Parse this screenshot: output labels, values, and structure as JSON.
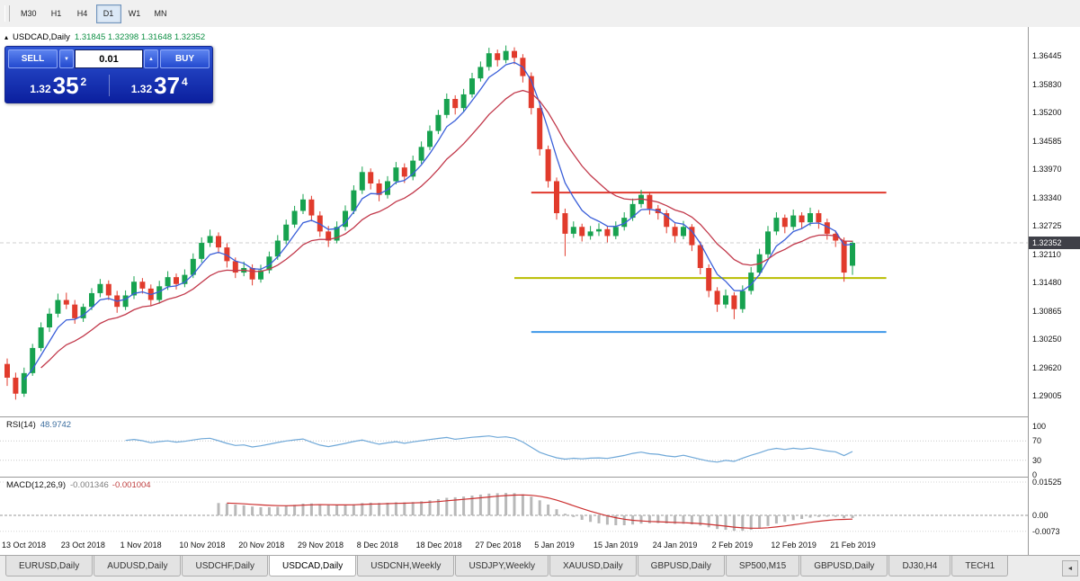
{
  "toolbar": {
    "timeframes": [
      {
        "label": "M30",
        "active": false
      },
      {
        "label": "H1",
        "active": false
      },
      {
        "label": "H4",
        "active": false
      },
      {
        "label": "D1",
        "active": true
      },
      {
        "label": "W1",
        "active": false
      },
      {
        "label": "MN",
        "active": false
      }
    ]
  },
  "chart_header": {
    "collapse_icon": "▴",
    "symbol": "USDCAD,Daily",
    "ohlc": "1.31845 1.32398 1.31648 1.32352"
  },
  "trade_panel": {
    "sell_label": "SELL",
    "buy_label": "BUY",
    "volume": "0.01",
    "volume_down_icon": "▼",
    "volume_up_icon": "▲",
    "sell_price": {
      "prefix": "1.32",
      "big": "35",
      "sup": "2"
    },
    "buy_price": {
      "prefix": "1.32",
      "big": "37",
      "sup": "4"
    }
  },
  "price_axis": {
    "labels": [
      "1.36445",
      "1.35830",
      "1.35200",
      "1.34585",
      "1.33970",
      "1.33340",
      "1.32725",
      "1.32110",
      "1.31480",
      "1.30865",
      "1.30250",
      "1.29620",
      "1.29005"
    ],
    "current": "1.32352"
  },
  "rsi_panel": {
    "title": "RSI(14)",
    "value": "48.9742",
    "levels": [
      100,
      70,
      30,
      0
    ]
  },
  "macd_panel": {
    "title": "MACD(12,26,9)",
    "value_macd": "-0.001346",
    "value_signal": "-0.001004",
    "levels": [
      {
        "label": "0.01525",
        "value": 0.01525
      },
      {
        "label": "0.00",
        "value": 0
      },
      {
        "label": "-0.0073",
        "value": -0.0073
      }
    ]
  },
  "date_axis": {
    "labels": [
      {
        "label": "13 Oct 2018",
        "i": 0
      },
      {
        "label": "23 Oct 2018",
        "i": 7
      },
      {
        "label": "1 Nov 2018",
        "i": 14
      },
      {
        "label": "10 Nov 2018",
        "i": 21
      },
      {
        "label": "20 Nov 2018",
        "i": 28
      },
      {
        "label": "29 Nov 2018",
        "i": 35
      },
      {
        "label": "8 Dec 2018",
        "i": 42
      },
      {
        "label": "18 Dec 2018",
        "i": 49
      },
      {
        "label": "27 Dec 2018",
        "i": 56
      },
      {
        "label": "5 Jan 2019",
        "i": 63
      },
      {
        "label": "15 Jan 2019",
        "i": 70
      },
      {
        "label": "24 Jan 2019",
        "i": 77
      },
      {
        "label": "2 Feb 2019",
        "i": 84
      },
      {
        "label": "12 Feb 2019",
        "i": 91
      },
      {
        "label": "21 Feb 2019",
        "i": 98
      }
    ]
  },
  "tabs": {
    "items": [
      {
        "label": "EURUSD,Daily",
        "active": false
      },
      {
        "label": "AUDUSD,Daily",
        "active": false
      },
      {
        "label": "USDCHF,Daily",
        "active": false
      },
      {
        "label": "USDCAD,Daily",
        "active": true
      },
      {
        "label": "USDCNH,Weekly",
        "active": false
      },
      {
        "label": "USDJPY,Weekly",
        "active": false
      },
      {
        "label": "XAUUSD,Daily",
        "active": false
      },
      {
        "label": "GBPUSD,Daily",
        "active": false
      },
      {
        "label": "SP500,M15",
        "active": false
      },
      {
        "label": "GBPUSD,Daily",
        "active": false
      },
      {
        "label": "DJ30,H4",
        "active": false
      },
      {
        "label": "TECH1",
        "active": false
      }
    ],
    "scroll_left_icon": "◄"
  },
  "chart_data": {
    "type": "candlestick",
    "symbol": "USDCAD",
    "timeframe": "Daily",
    "colors": {
      "up": "#17a24f",
      "down": "#e13b2c"
    },
    "ma": {
      "fast_period": 5,
      "fast_color": "#3a5fd9",
      "slow_period": 13,
      "slow_color": "#c2394b"
    },
    "hlines": [
      {
        "price": 1.3345,
        "color": "#e0392e",
        "from_i": 62,
        "to_i": 104
      },
      {
        "price": 1.3158,
        "color": "#b9bd00",
        "from_i": 60,
        "to_i": 104
      },
      {
        "price": 1.304,
        "color": "#3d97e8",
        "from_i": 62,
        "to_i": 104
      }
    ],
    "rsi": {
      "period": 14,
      "color": "#6fa8d8"
    },
    "macd": {
      "fast": 12,
      "slow": 26,
      "signal": 9,
      "hist_color": "#b8b8b8",
      "signal_color": "#cc2f2f"
    },
    "candles": [
      [
        1.297,
        1.2982,
        1.2922,
        1.294
      ],
      [
        1.294,
        1.2951,
        1.2892,
        1.2905
      ],
      [
        1.2905,
        1.2962,
        1.2898,
        1.295
      ],
      [
        1.295,
        1.3014,
        1.2944,
        1.3005
      ],
      [
        1.3005,
        1.3061,
        1.2998,
        1.305
      ],
      [
        1.305,
        1.3092,
        1.304,
        1.308
      ],
      [
        1.308,
        1.3124,
        1.3072,
        1.311
      ],
      [
        1.311,
        1.3126,
        1.309,
        1.31
      ],
      [
        1.31,
        1.311,
        1.3058,
        1.307
      ],
      [
        1.307,
        1.3102,
        1.3062,
        1.3095
      ],
      [
        1.3095,
        1.3136,
        1.3088,
        1.3125
      ],
      [
        1.3125,
        1.3156,
        1.3116,
        1.3145
      ],
      [
        1.3145,
        1.3153,
        1.311,
        1.312
      ],
      [
        1.312,
        1.313,
        1.3082,
        1.3095
      ],
      [
        1.3095,
        1.3131,
        1.3088,
        1.312
      ],
      [
        1.312,
        1.3162,
        1.3112,
        1.315
      ],
      [
        1.315,
        1.3158,
        1.3124,
        1.3135
      ],
      [
        1.3135,
        1.3144,
        1.3098,
        1.311
      ],
      [
        1.311,
        1.3152,
        1.3102,
        1.314
      ],
      [
        1.314,
        1.3173,
        1.3132,
        1.316
      ],
      [
        1.316,
        1.3168,
        1.3133,
        1.3145
      ],
      [
        1.3145,
        1.3177,
        1.3138,
        1.3165
      ],
      [
        1.3165,
        1.3212,
        1.3158,
        1.32
      ],
      [
        1.32,
        1.3247,
        1.3192,
        1.3235
      ],
      [
        1.3235,
        1.3264,
        1.3226,
        1.325
      ],
      [
        1.325,
        1.3258,
        1.3212,
        1.3225
      ],
      [
        1.3225,
        1.3234,
        1.3181,
        1.3195
      ],
      [
        1.3195,
        1.3203,
        1.3158,
        1.317
      ],
      [
        1.317,
        1.3194,
        1.3162,
        1.318
      ],
      [
        1.318,
        1.3188,
        1.3142,
        1.3155
      ],
      [
        1.3155,
        1.3187,
        1.3148,
        1.3175
      ],
      [
        1.3175,
        1.3216,
        1.3168,
        1.3205
      ],
      [
        1.3205,
        1.3252,
        1.3198,
        1.324
      ],
      [
        1.324,
        1.3286,
        1.3232,
        1.3275
      ],
      [
        1.3275,
        1.3316,
        1.3268,
        1.3305
      ],
      [
        1.3305,
        1.3342,
        1.3298,
        1.333
      ],
      [
        1.333,
        1.3338,
        1.3282,
        1.3295
      ],
      [
        1.3295,
        1.3304,
        1.3248,
        1.326
      ],
      [
        1.326,
        1.3272,
        1.3226,
        1.324
      ],
      [
        1.324,
        1.3282,
        1.3234,
        1.327
      ],
      [
        1.327,
        1.3317,
        1.3262,
        1.3305
      ],
      [
        1.3305,
        1.3361,
        1.3298,
        1.335
      ],
      [
        1.335,
        1.3402,
        1.3342,
        1.339
      ],
      [
        1.339,
        1.3398,
        1.3352,
        1.3365
      ],
      [
        1.3365,
        1.3374,
        1.3326,
        1.334
      ],
      [
        1.334,
        1.3381,
        1.3332,
        1.337
      ],
      [
        1.337,
        1.3412,
        1.3363,
        1.34
      ],
      [
        1.34,
        1.3409,
        1.3366,
        1.338
      ],
      [
        1.338,
        1.3426,
        1.3372,
        1.3415
      ],
      [
        1.3415,
        1.3457,
        1.3408,
        1.3445
      ],
      [
        1.3445,
        1.3492,
        1.3438,
        1.348
      ],
      [
        1.348,
        1.3526,
        1.3473,
        1.3515
      ],
      [
        1.3515,
        1.3562,
        1.3508,
        1.355
      ],
      [
        1.355,
        1.3558,
        1.3516,
        1.353
      ],
      [
        1.353,
        1.3572,
        1.3522,
        1.356
      ],
      [
        1.356,
        1.3607,
        1.3553,
        1.3595
      ],
      [
        1.3595,
        1.3632,
        1.3588,
        1.362
      ],
      [
        1.362,
        1.3662,
        1.3612,
        1.365
      ],
      [
        1.365,
        1.3658,
        1.3621,
        1.3635
      ],
      [
        1.3635,
        1.3667,
        1.3628,
        1.3655
      ],
      [
        1.3655,
        1.3663,
        1.3626,
        1.364
      ],
      [
        1.364,
        1.3648,
        1.3586,
        1.36
      ],
      [
        1.36,
        1.3608,
        1.3516,
        1.353
      ],
      [
        1.353,
        1.3538,
        1.3426,
        1.344
      ],
      [
        1.344,
        1.3448,
        1.3356,
        1.337
      ],
      [
        1.337,
        1.3378,
        1.3286,
        1.33
      ],
      [
        1.33,
        1.331,
        1.3206,
        1.3255
      ],
      [
        1.3255,
        1.3282,
        1.3246,
        1.327
      ],
      [
        1.327,
        1.3277,
        1.3238,
        1.325
      ],
      [
        1.325,
        1.3272,
        1.3242,
        1.326
      ],
      [
        1.326,
        1.3278,
        1.325,
        1.3265
      ],
      [
        1.3265,
        1.3272,
        1.3236,
        1.325
      ],
      [
        1.325,
        1.3282,
        1.3243,
        1.327
      ],
      [
        1.327,
        1.3302,
        1.3262,
        1.329
      ],
      [
        1.329,
        1.3332,
        1.3283,
        1.332
      ],
      [
        1.332,
        1.3351,
        1.3312,
        1.334
      ],
      [
        1.334,
        1.3347,
        1.3297,
        1.331
      ],
      [
        1.331,
        1.3318,
        1.3286,
        1.33
      ],
      [
        1.33,
        1.3307,
        1.3256,
        1.327
      ],
      [
        1.327,
        1.3278,
        1.3236,
        1.325
      ],
      [
        1.325,
        1.3283,
        1.3243,
        1.327
      ],
      [
        1.327,
        1.3276,
        1.3217,
        1.323
      ],
      [
        1.323,
        1.3238,
        1.3166,
        1.318
      ],
      [
        1.318,
        1.3188,
        1.3116,
        1.313
      ],
      [
        1.313,
        1.3138,
        1.3084,
        1.31
      ],
      [
        1.31,
        1.3133,
        1.3092,
        1.312
      ],
      [
        1.312,
        1.3127,
        1.3068,
        1.309
      ],
      [
        1.309,
        1.3142,
        1.3082,
        1.313
      ],
      [
        1.313,
        1.3182,
        1.3122,
        1.317
      ],
      [
        1.317,
        1.3222,
        1.3163,
        1.321
      ],
      [
        1.321,
        1.3272,
        1.3202,
        1.326
      ],
      [
        1.326,
        1.3302,
        1.3252,
        1.329
      ],
      [
        1.329,
        1.3297,
        1.3256,
        1.327
      ],
      [
        1.327,
        1.3308,
        1.3263,
        1.3295
      ],
      [
        1.3295,
        1.3302,
        1.3266,
        1.328
      ],
      [
        1.328,
        1.3312,
        1.3272,
        1.33
      ],
      [
        1.33,
        1.3307,
        1.3266,
        1.328
      ],
      [
        1.328,
        1.3288,
        1.3242,
        1.3255
      ],
      [
        1.3255,
        1.3262,
        1.3226,
        1.324
      ],
      [
        1.324,
        1.3247,
        1.315,
        1.317
      ],
      [
        1.3185,
        1.324,
        1.3165,
        1.3235
      ]
    ]
  }
}
